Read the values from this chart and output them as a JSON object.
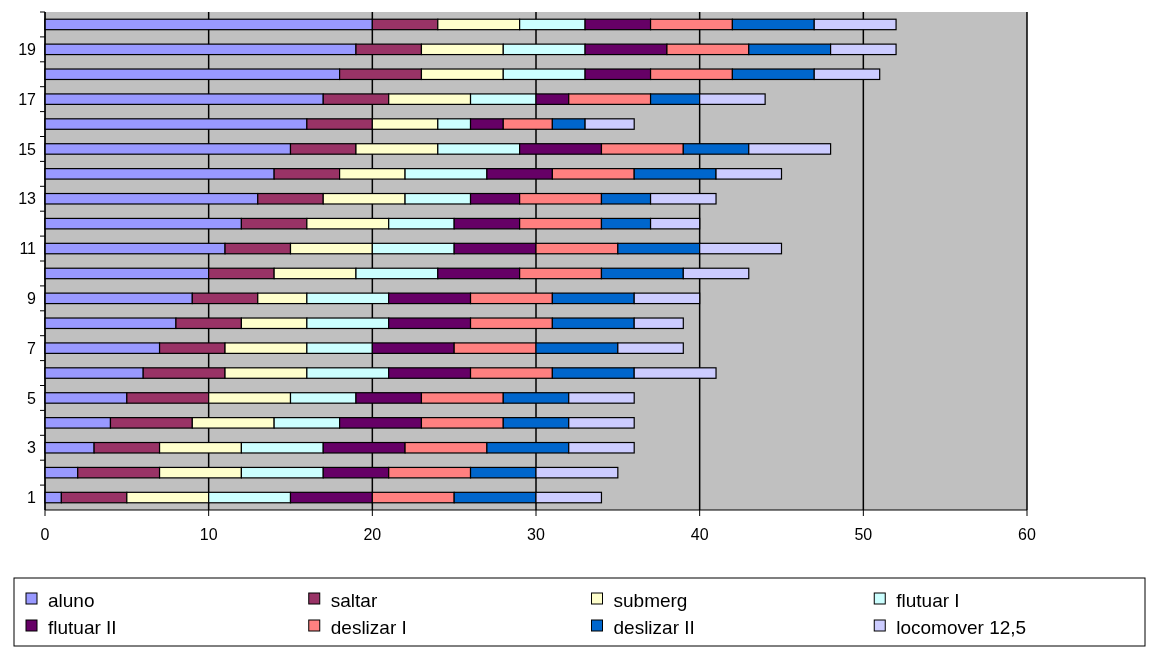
{
  "chart_data": {
    "type": "bar",
    "orientation": "horizontal",
    "stacked": true,
    "categories": [
      null,
      "19",
      null,
      "17",
      null,
      "15",
      null,
      "13",
      null,
      "11",
      null,
      "9",
      null,
      "7",
      null,
      "5",
      null,
      "3",
      null,
      "1"
    ],
    "series": [
      {
        "name": "aluno",
        "color": "#9999ff",
        "values": [
          20,
          19,
          18,
          17,
          16,
          15,
          14,
          13,
          12,
          11,
          10,
          9,
          8,
          7,
          6,
          5,
          4,
          3,
          2,
          1
        ]
      },
      {
        "name": "saltar",
        "color": "#993366",
        "values": [
          4,
          4,
          5,
          4,
          4,
          4,
          4,
          4,
          4,
          4,
          4,
          4,
          4,
          4,
          5,
          5,
          5,
          4,
          5,
          4
        ]
      },
      {
        "name": "submerg",
        "color": "#ffffcc",
        "values": [
          5,
          5,
          5,
          5,
          4,
          5,
          4,
          5,
          5,
          5,
          5,
          3,
          4,
          5,
          5,
          5,
          5,
          5,
          5,
          5
        ]
      },
      {
        "name": "flutuar I",
        "color": "#ccffff",
        "values": [
          4,
          5,
          5,
          4,
          2,
          5,
          5,
          4,
          4,
          5,
          5,
          5,
          5,
          4,
          5,
          4,
          4,
          5,
          5,
          5
        ]
      },
      {
        "name": "flutuar II",
        "color": "#660066",
        "values": [
          4,
          5,
          4,
          2,
          2,
          5,
          4,
          3,
          4,
          5,
          5,
          5,
          5,
          5,
          5,
          4,
          5,
          5,
          4,
          5
        ]
      },
      {
        "name": "deslizar I",
        "color": "#ff8080",
        "values": [
          5,
          5,
          5,
          5,
          3,
          5,
          5,
          5,
          5,
          5,
          5,
          5,
          5,
          5,
          5,
          5,
          5,
          5,
          5,
          5
        ]
      },
      {
        "name": "deslizar II",
        "color": "#0066cc",
        "values": [
          5,
          5,
          5,
          3,
          2,
          4,
          5,
          3,
          3,
          5,
          5,
          5,
          5,
          5,
          5,
          4,
          4,
          5,
          4,
          5
        ]
      },
      {
        "name": "locomover 12,5",
        "color": "#ccccff",
        "values": [
          5,
          4,
          4,
          4,
          3,
          5,
          4,
          4,
          3,
          5,
          4,
          4,
          3,
          4,
          5,
          4,
          4,
          4,
          5,
          4
        ]
      }
    ],
    "xlim": [
      0,
      60
    ],
    "xticks": [
      0,
      10,
      20,
      30,
      40,
      50,
      60
    ],
    "grid": "x",
    "legend": "bottom"
  }
}
